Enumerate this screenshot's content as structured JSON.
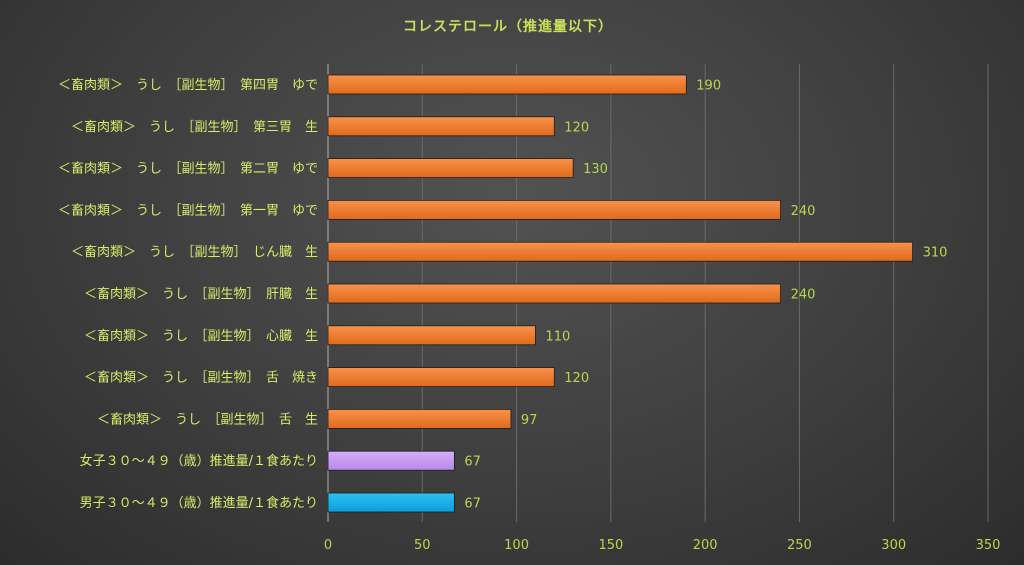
{
  "chart_data": {
    "type": "bar",
    "orientation": "horizontal",
    "title": "コレステロール（推進量以下）",
    "categories": [
      "＜畜肉類＞　うし　［副生物］　第四胃　ゆで",
      "＜畜肉類＞　うし　［副生物］　第三胃　生",
      "＜畜肉類＞　うし　［副生物］　第二胃　ゆで",
      "＜畜肉類＞　うし　［副生物］　第一胃　ゆで",
      "＜畜肉類＞　うし　［副生物］　じん臓　生",
      "＜畜肉類＞　うし　［副生物］　肝臓　生",
      "＜畜肉類＞　うし　［副生物］　心臓　生",
      "＜畜肉類＞　うし　［副生物］　舌　焼き",
      "＜畜肉類＞　うし　［副生物］　舌　生",
      "女子３０～４９（歳）推進量/１食あたり",
      "男子３０～４９（歳）推進量/１食あたり"
    ],
    "values": [
      190,
      120,
      130,
      240,
      310,
      240,
      110,
      120,
      97,
      67,
      67
    ],
    "xlim": [
      0,
      350
    ],
    "ticks": [
      0,
      50,
      100,
      150,
      200,
      250,
      300,
      350
    ],
    "grid": true,
    "legend": "none",
    "colors": {
      "food": "#f07c2c",
      "female": "#c79af2",
      "male": "#10b0ea"
    },
    "bar_color_keys": [
      "food",
      "food",
      "food",
      "food",
      "food",
      "food",
      "food",
      "food",
      "food",
      "female",
      "male"
    ]
  }
}
